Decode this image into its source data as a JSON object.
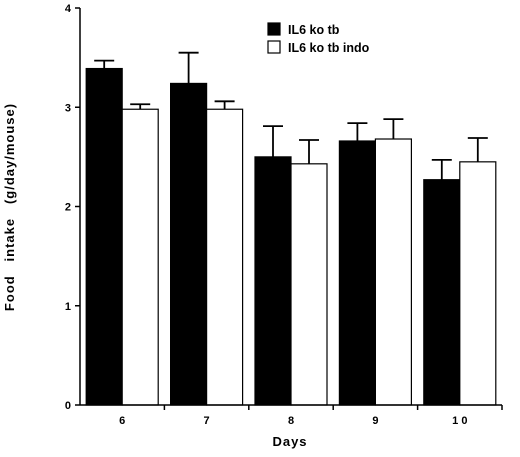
{
  "chart_data": {
    "type": "bar",
    "title": "",
    "xlabel": "Days",
    "ylabel": "Food   intake   (g/day/mouse)",
    "categories": [
      "6",
      "7",
      "8",
      "9",
      "1 0"
    ],
    "ylim": [
      0,
      4
    ],
    "yticks": [
      "0",
      "1",
      "2",
      "3",
      "4"
    ],
    "legend_position": "top-right",
    "grid": false,
    "series": [
      {
        "name": "IL6 ko tb",
        "color": "#000000",
        "values": [
          3.39,
          3.24,
          2.5,
          2.66,
          2.27
        ],
        "errors": [
          0.08,
          0.31,
          0.31,
          0.18,
          0.2
        ]
      },
      {
        "name": "IL6 ko tb indo",
        "color": "#ffffff",
        "values": [
          2.98,
          2.98,
          2.43,
          2.68,
          2.45
        ],
        "errors": [
          0.05,
          0.08,
          0.24,
          0.2,
          0.24
        ]
      }
    ]
  }
}
